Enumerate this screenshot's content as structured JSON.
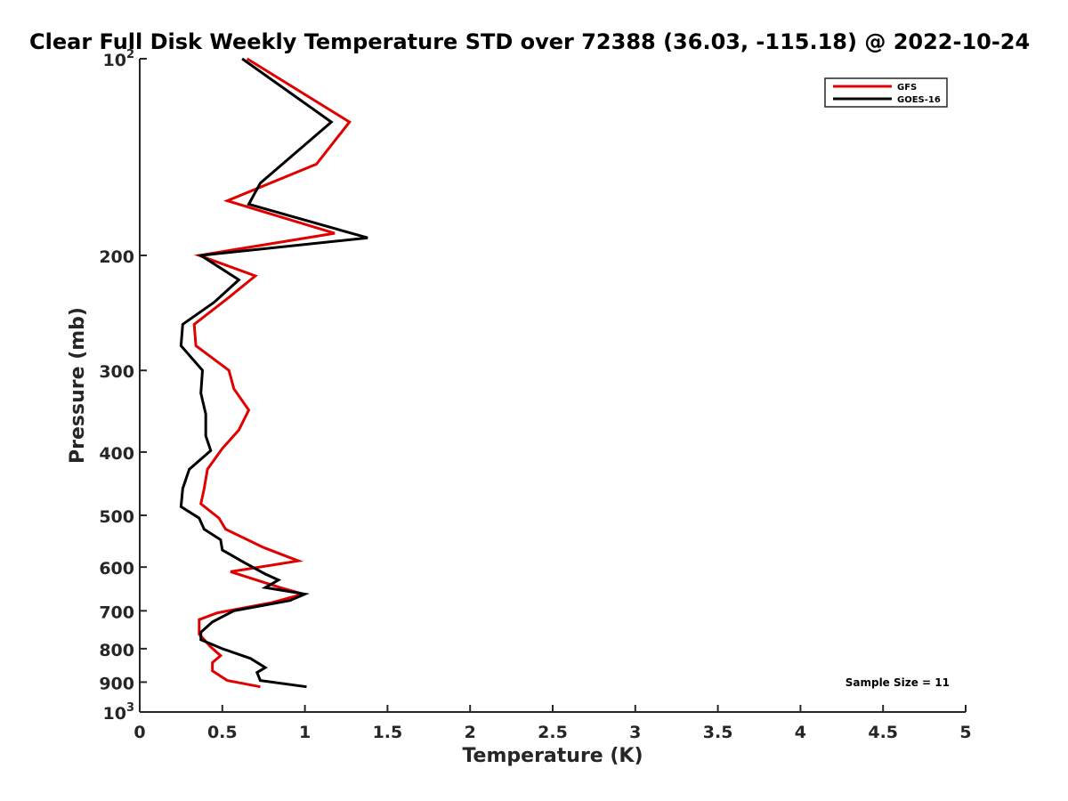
{
  "chart_data": {
    "type": "line",
    "title": "Clear Full Disk Weekly Temperature STD over 72388 (36.03, -115.18) @ 2022-10-24",
    "xlabel": "Temperature (K)",
    "ylabel": "Pressure (mb)",
    "xlim": [
      0,
      5
    ],
    "ylim": [
      100,
      1000
    ],
    "y_scale": "log",
    "y_reversed": true,
    "x_ticks": [
      "0",
      "0.5",
      "1",
      "1.5",
      "2",
      "2.5",
      "3",
      "3.5",
      "4",
      "4.5",
      "5"
    ],
    "y_ticks": [
      {
        "value": 100,
        "base": "10",
        "exp": "2"
      },
      {
        "value": 200,
        "label": "200"
      },
      {
        "value": 300,
        "label": "300"
      },
      {
        "value": 400,
        "label": "400"
      },
      {
        "value": 500,
        "label": "500"
      },
      {
        "value": 600,
        "label": "600"
      },
      {
        "value": 700,
        "label": "700"
      },
      {
        "value": 800,
        "label": "800"
      },
      {
        "value": 900,
        "label": "900"
      },
      {
        "value": 1000,
        "base": "10",
        "exp": "3"
      }
    ],
    "grid": false,
    "legend_position": "top-right",
    "annotation": "Sample Size = 11",
    "series": [
      {
        "name": "GFS",
        "color": "#e00000",
        "points": [
          [
            0.65,
            100
          ],
          [
            1.27,
            125
          ],
          [
            1.07,
            145
          ],
          [
            0.53,
            165
          ],
          [
            1.18,
            185
          ],
          [
            0.36,
            200
          ],
          [
            0.7,
            215
          ],
          [
            0.53,
            233
          ],
          [
            0.33,
            255
          ],
          [
            0.34,
            275
          ],
          [
            0.54,
            300
          ],
          [
            0.57,
            320
          ],
          [
            0.66,
            345
          ],
          [
            0.6,
            370
          ],
          [
            0.5,
            395
          ],
          [
            0.41,
            425
          ],
          [
            0.39,
            455
          ],
          [
            0.37,
            480
          ],
          [
            0.48,
            505
          ],
          [
            0.52,
            525
          ],
          [
            0.75,
            560
          ],
          [
            0.96,
            587
          ],
          [
            0.55,
            610
          ],
          [
            0.85,
            645
          ],
          [
            0.99,
            660
          ],
          [
            0.8,
            680
          ],
          [
            0.47,
            705
          ],
          [
            0.36,
            722
          ],
          [
            0.36,
            760
          ],
          [
            0.43,
            795
          ],
          [
            0.49,
            820
          ],
          [
            0.44,
            840
          ],
          [
            0.44,
            865
          ],
          [
            0.53,
            895
          ],
          [
            0.73,
            915
          ]
        ]
      },
      {
        "name": "GOES-16",
        "color": "#000000",
        "points": [
          [
            0.62,
            100
          ],
          [
            1.16,
            125
          ],
          [
            0.73,
            155
          ],
          [
            0.66,
            167
          ],
          [
            1.38,
            188
          ],
          [
            0.37,
            200
          ],
          [
            0.6,
            218
          ],
          [
            0.45,
            236
          ],
          [
            0.26,
            255
          ],
          [
            0.25,
            275
          ],
          [
            0.38,
            300
          ],
          [
            0.37,
            325
          ],
          [
            0.4,
            350
          ],
          [
            0.4,
            378
          ],
          [
            0.43,
            398
          ],
          [
            0.3,
            425
          ],
          [
            0.26,
            455
          ],
          [
            0.25,
            485
          ],
          [
            0.36,
            505
          ],
          [
            0.39,
            525
          ],
          [
            0.49,
            545
          ],
          [
            0.5,
            565
          ],
          [
            0.63,
            590
          ],
          [
            0.76,
            615
          ],
          [
            0.84,
            628
          ],
          [
            0.76,
            645
          ],
          [
            1.0,
            660
          ],
          [
            0.91,
            675
          ],
          [
            0.57,
            700
          ],
          [
            0.44,
            728
          ],
          [
            0.37,
            755
          ],
          [
            0.37,
            775
          ],
          [
            0.5,
            800
          ],
          [
            0.67,
            828
          ],
          [
            0.76,
            855
          ],
          [
            0.71,
            870
          ],
          [
            0.73,
            895
          ],
          [
            1.01,
            915
          ]
        ]
      }
    ]
  }
}
